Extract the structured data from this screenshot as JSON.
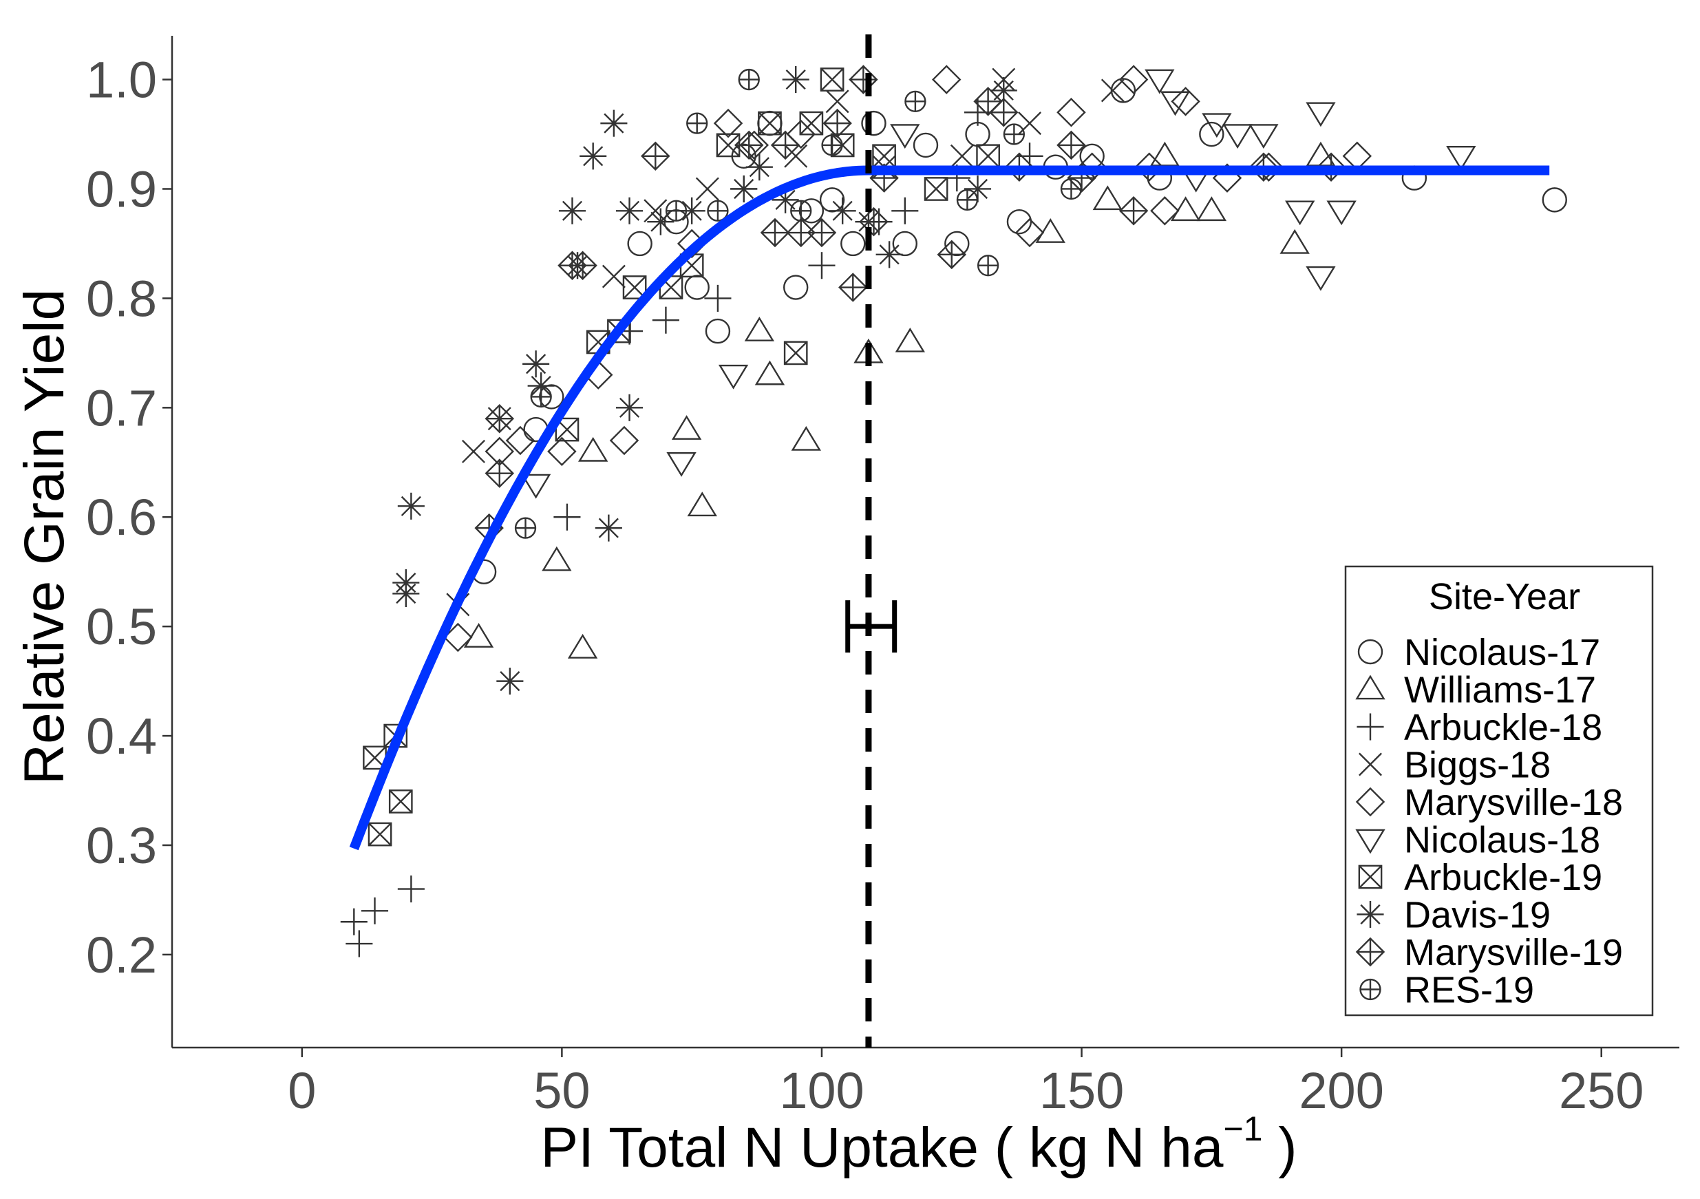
{
  "chart_data": {
    "type": "scatter",
    "xlabel": "PI Total N Uptake ( kg N ha",
    "xlabel_sup": "−1",
    "xlabel_end": " )",
    "ylabel": "Relative Grain Yield",
    "xlim": [
      -25,
      265
    ],
    "ylim": [
      0.115,
      1.04
    ],
    "x_ticks": [
      0,
      50,
      100,
      150,
      200,
      250
    ],
    "y_ticks": [
      0.2,
      0.3,
      0.4,
      0.5,
      0.6,
      0.7,
      0.8,
      0.9,
      1.0
    ],
    "y_tick_labels": [
      "0.2",
      "0.3",
      "0.4",
      "0.5",
      "0.6",
      "0.7",
      "0.8",
      "0.9",
      "1.0"
    ],
    "grid": false,
    "fit": {
      "model": "quadratic-plateau",
      "x_range": [
        10,
        240
      ],
      "vertex_x": 109,
      "plateau_y": 0.917,
      "start_y": 0.297,
      "color": "#0033FF"
    },
    "critical_line": {
      "x": 109,
      "style": "dashed",
      "color": "#000000"
    },
    "error_bar": {
      "x": 109,
      "y": 0.5,
      "xmin": 105,
      "xmax": 114
    },
    "legend": {
      "title": "Site-Year",
      "position": "bottom-right",
      "entries": [
        {
          "label": "Nicolaus-17",
          "shape": "circle"
        },
        {
          "label": "Williams-17",
          "shape": "triangle-up"
        },
        {
          "label": "Arbuckle-18",
          "shape": "plus"
        },
        {
          "label": "Biggs-18",
          "shape": "cross"
        },
        {
          "label": "Marysville-18",
          "shape": "diamond"
        },
        {
          "label": "Nicolaus-18",
          "shape": "triangle-down"
        },
        {
          "label": "Arbuckle-19",
          "shape": "square-cross"
        },
        {
          "label": "Davis-19",
          "shape": "asterisk"
        },
        {
          "label": "Marysville-19",
          "shape": "diamond-plus"
        },
        {
          "label": "RES-19",
          "shape": "circle-plus"
        }
      ]
    },
    "series": [
      {
        "name": "Nicolaus-17",
        "shape": "circle",
        "points": [
          [
            35,
            0.55
          ],
          [
            45,
            0.68
          ],
          [
            48,
            0.71
          ],
          [
            65,
            0.85
          ],
          [
            72,
            0.87
          ],
          [
            76,
            0.81
          ],
          [
            80,
            0.77
          ],
          [
            85,
            0.93
          ],
          [
            90,
            0.96
          ],
          [
            95,
            0.81
          ],
          [
            98,
            0.88
          ],
          [
            102,
            0.89
          ],
          [
            106,
            0.85
          ],
          [
            110,
            0.96
          ],
          [
            116,
            0.85
          ],
          [
            120,
            0.94
          ],
          [
            126,
            0.85
          ],
          [
            130,
            0.95
          ],
          [
            138,
            0.87
          ],
          [
            145,
            0.92
          ],
          [
            152,
            0.93
          ],
          [
            158,
            0.99
          ],
          [
            165,
            0.91
          ],
          [
            175,
            0.95
          ],
          [
            214,
            0.91
          ],
          [
            241,
            0.89
          ]
        ]
      },
      {
        "name": "Williams-17",
        "shape": "triangle-up",
        "points": [
          [
            34,
            0.49
          ],
          [
            49,
            0.56
          ],
          [
            54,
            0.48
          ],
          [
            56,
            0.66
          ],
          [
            74,
            0.68
          ],
          [
            77,
            0.61
          ],
          [
            88,
            0.77
          ],
          [
            90,
            0.73
          ],
          [
            97,
            0.67
          ],
          [
            109,
            0.75
          ],
          [
            117,
            0.76
          ],
          [
            144,
            0.86
          ],
          [
            155,
            0.89
          ],
          [
            166,
            0.93
          ],
          [
            170,
            0.88
          ],
          [
            175,
            0.88
          ],
          [
            191,
            0.85
          ],
          [
            196,
            0.93
          ]
        ]
      },
      {
        "name": "Arbuckle-18",
        "shape": "plus",
        "points": [
          [
            10,
            0.23
          ],
          [
            11,
            0.21
          ],
          [
            14,
            0.24
          ],
          [
            21,
            0.26
          ],
          [
            51,
            0.6
          ],
          [
            63,
            0.77
          ],
          [
            70,
            0.78
          ],
          [
            80,
            0.8
          ],
          [
            85,
            0.9
          ],
          [
            100,
            0.83
          ],
          [
            111,
            0.87
          ],
          [
            116,
            0.88
          ],
          [
            126,
            0.91
          ],
          [
            130,
            0.97
          ],
          [
            140,
            0.93
          ]
        ]
      },
      {
        "name": "Biggs-18",
        "shape": "cross",
        "points": [
          [
            30,
            0.52
          ],
          [
            33,
            0.66
          ],
          [
            38,
            0.69
          ],
          [
            60,
            0.82
          ],
          [
            68,
            0.88
          ],
          [
            78,
            0.9
          ],
          [
            95,
            0.93
          ],
          [
            103,
            0.98
          ],
          [
            112,
            0.92
          ],
          [
            127,
            0.93
          ],
          [
            135,
            1.0
          ],
          [
            140,
            0.96
          ],
          [
            156,
            0.99
          ]
        ]
      },
      {
        "name": "Marysville-18",
        "shape": "diamond",
        "points": [
          [
            30,
            0.49
          ],
          [
            38,
            0.66
          ],
          [
            42,
            0.67
          ],
          [
            50,
            0.66
          ],
          [
            57,
            0.73
          ],
          [
            62,
            0.67
          ],
          [
            75,
            0.85
          ],
          [
            82,
            0.96
          ],
          [
            87,
            0.94
          ],
          [
            96,
            0.95
          ],
          [
            124,
            1.0
          ],
          [
            140,
            0.86
          ],
          [
            148,
            0.97
          ],
          [
            152,
            0.92
          ],
          [
            160,
            1.0
          ],
          [
            163,
            0.92
          ],
          [
            166,
            0.88
          ],
          [
            170,
            0.98
          ],
          [
            178,
            0.91
          ],
          [
            186,
            0.92
          ],
          [
            203,
            0.93
          ]
        ]
      },
      {
        "name": "Nicolaus-18",
        "shape": "triangle-down",
        "points": [
          [
            45,
            0.63
          ],
          [
            73,
            0.65
          ],
          [
            83,
            0.73
          ],
          [
            116,
            0.95
          ],
          [
            165,
            1.0
          ],
          [
            168,
            0.98
          ],
          [
            172,
            0.91
          ],
          [
            176,
            0.96
          ],
          [
            180,
            0.95
          ],
          [
            185,
            0.95
          ],
          [
            192,
            0.88
          ],
          [
            196,
            0.82
          ],
          [
            196,
            0.97
          ],
          [
            200,
            0.88
          ],
          [
            223,
            0.93
          ]
        ]
      },
      {
        "name": "Arbuckle-19",
        "shape": "square-cross",
        "points": [
          [
            14,
            0.38
          ],
          [
            15,
            0.31
          ],
          [
            18,
            0.4
          ],
          [
            19,
            0.34
          ],
          [
            51,
            0.68
          ],
          [
            57,
            0.76
          ],
          [
            61,
            0.77
          ],
          [
            64,
            0.81
          ],
          [
            71,
            0.81
          ],
          [
            75,
            0.83
          ],
          [
            82,
            0.94
          ],
          [
            90,
            0.96
          ],
          [
            95,
            0.75
          ],
          [
            98,
            0.96
          ],
          [
            102,
            1.0
          ],
          [
            104,
            0.94
          ],
          [
            112,
            0.93
          ],
          [
            122,
            0.9
          ],
          [
            132,
            0.93
          ]
        ]
      },
      {
        "name": "Davis-19",
        "shape": "asterisk",
        "points": [
          [
            20,
            0.53
          ],
          [
            20,
            0.54
          ],
          [
            21,
            0.61
          ],
          [
            40,
            0.45
          ],
          [
            45,
            0.74
          ],
          [
            46,
            0.72
          ],
          [
            52,
            0.88
          ],
          [
            53,
            0.83
          ],
          [
            56,
            0.93
          ],
          [
            59,
            0.59
          ],
          [
            60,
            0.96
          ],
          [
            63,
            0.88
          ],
          [
            63,
            0.7
          ],
          [
            69,
            0.87
          ],
          [
            75,
            0.88
          ],
          [
            85,
            0.9
          ],
          [
            88,
            0.92
          ],
          [
            93,
            0.89
          ],
          [
            95,
            1.0
          ],
          [
            104,
            0.88
          ],
          [
            109,
            0.87
          ],
          [
            113,
            0.84
          ],
          [
            130,
            0.9
          ],
          [
            135,
            0.99
          ]
        ]
      },
      {
        "name": "Marysville-19",
        "shape": "diamond-plus",
        "points": [
          [
            36,
            0.59
          ],
          [
            38,
            0.69
          ],
          [
            38,
            0.64
          ],
          [
            52,
            0.83
          ],
          [
            54,
            0.83
          ],
          [
            68,
            0.93
          ],
          [
            86,
            0.94
          ],
          [
            91,
            0.86
          ],
          [
            93,
            0.94
          ],
          [
            96,
            0.86
          ],
          [
            100,
            0.86
          ],
          [
            103,
            0.96
          ],
          [
            106,
            0.81
          ],
          [
            108,
            1.0
          ],
          [
            110,
            0.87
          ],
          [
            112,
            0.91
          ],
          [
            125,
            0.84
          ],
          [
            132,
            0.98
          ],
          [
            135,
            0.97
          ],
          [
            138,
            0.92
          ],
          [
            148,
            0.94
          ],
          [
            150,
            0.91
          ],
          [
            160,
            0.88
          ],
          [
            185,
            0.92
          ],
          [
            198,
            0.92
          ]
        ]
      },
      {
        "name": "RES-19",
        "shape": "circle-plus",
        "points": [
          [
            43,
            0.59
          ],
          [
            46,
            0.71
          ],
          [
            72,
            0.88
          ],
          [
            76,
            0.96
          ],
          [
            80,
            0.88
          ],
          [
            86,
            1.0
          ],
          [
            96,
            0.88
          ],
          [
            102,
            0.94
          ],
          [
            118,
            0.98
          ],
          [
            128,
            0.89
          ],
          [
            132,
            0.83
          ],
          [
            137,
            0.95
          ],
          [
            148,
            0.9
          ]
        ]
      }
    ]
  }
}
